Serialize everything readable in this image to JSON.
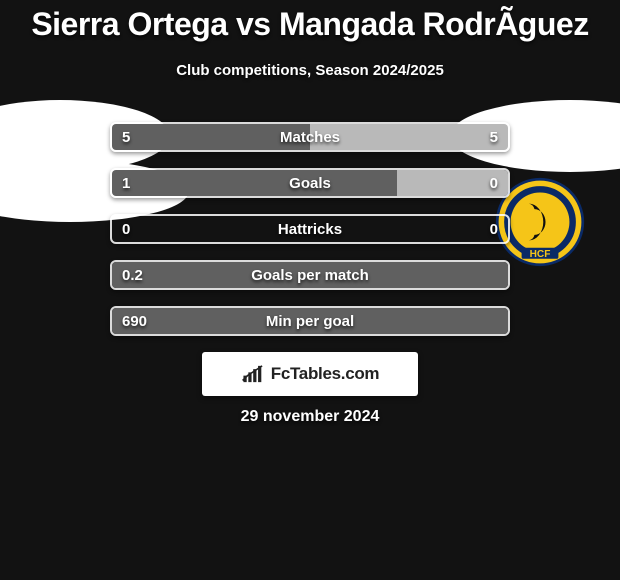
{
  "background_color": "#121212",
  "title": "Sierra Ortega vs Mangada RodrÃ­guez",
  "subtitle": "Club competitions, Season 2024/2025",
  "date": "29 november 2024",
  "watermark_text": "FcTables.com",
  "colors": {
    "left_fill": "#606060",
    "right_fill": "#b9b9b9",
    "bar_border": "rgba(255,255,255,0.85)",
    "text": "#ffffff"
  },
  "club_badge": {
    "outer": "#0a2a66",
    "ring": "#f5c518",
    "inner_bg": "#0a2a66",
    "hcf_text": "HCF"
  },
  "bars": [
    {
      "label": "Matches",
      "left_val": "5",
      "right_val": "5",
      "left_pct": 50,
      "right_pct": 50
    },
    {
      "label": "Goals",
      "left_val": "1",
      "right_val": "0",
      "left_pct": 72,
      "right_pct": 28
    },
    {
      "label": "Hattricks",
      "left_val": "0",
      "right_val": "0",
      "left_pct": 0,
      "right_pct": 0
    },
    {
      "label": "Goals per match",
      "left_val": "0.2",
      "right_val": "",
      "left_pct": 100,
      "right_pct": 0
    },
    {
      "label": "Min per goal",
      "left_val": "690",
      "right_val": "",
      "left_pct": 100,
      "right_pct": 0
    }
  ]
}
